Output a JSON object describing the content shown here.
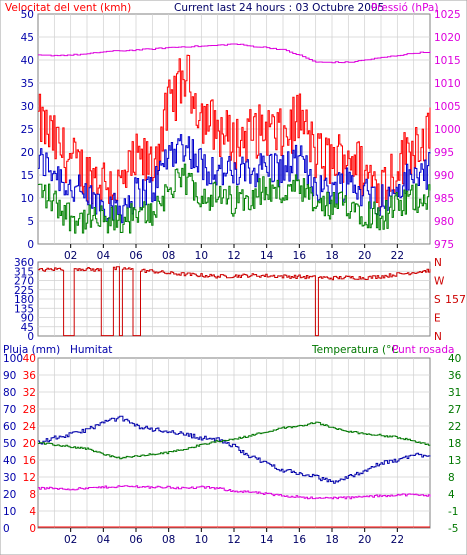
{
  "header": {
    "left_title": "Velocitat del vent (kmh)",
    "center_title": "Current last 24 hours : 03 Octubre 2005",
    "right_title": "Pressió (hPa)"
  },
  "mid_axis": {
    "right_letters": [
      "N",
      "W",
      "S",
      "E",
      "N"
    ],
    "current_direction": "157"
  },
  "bottom_header": {
    "rain_label": "Pluja (mm)",
    "humidity_label": "Humitat",
    "temp_label": "Temperatura (°C",
    "dew_label": "Punt rosada"
  },
  "colors": {
    "wind_gust": "#ff0000",
    "wind_avg": "#0000cc",
    "wind_min": "#008000",
    "pressure": "#dd00dd",
    "direction": "#cc0000",
    "humidity": "#0000aa",
    "temperature": "#007700",
    "dewpoint": "#dd00dd",
    "rain": "#ff0000",
    "frame": "#808080",
    "grid": "#d0d0d0"
  },
  "chart_data": [
    {
      "type": "line",
      "title": "Velocitat del vent (kmh) / Pressió (hPa)",
      "x_hours": [
        0,
        1,
        2,
        3,
        4,
        5,
        6,
        7,
        8,
        9,
        10,
        11,
        12,
        13,
        14,
        15,
        16,
        17,
        18,
        19,
        20,
        21,
        22,
        23,
        24
      ],
      "x_ticks": [
        "02",
        "04",
        "06",
        "08",
        "10",
        "12",
        "14",
        "16",
        "18",
        "20",
        "22"
      ],
      "y_left_ticks": [
        "0",
        "5",
        "10",
        "15",
        "20",
        "25",
        "30",
        "35",
        "40",
        "45",
        "50"
      ],
      "y_left_range": [
        0,
        50
      ],
      "y_right_ticks": [
        "975",
        "980",
        "985",
        "990",
        "995",
        "1000",
        "1005",
        "1010",
        "1015",
        "1020",
        "1025"
      ],
      "y_right_range": [
        975,
        1025
      ],
      "series": [
        {
          "key": "wind_gust",
          "values": [
            27,
            22,
            18,
            15,
            14,
            12,
            18,
            17,
            30,
            37,
            28,
            25,
            22,
            24,
            25,
            23,
            28,
            19,
            18,
            20,
            15,
            13,
            17,
            22,
            24
          ]
        },
        {
          "key": "wind_avg",
          "values": [
            18,
            16,
            12,
            10,
            9,
            8,
            11,
            12,
            20,
            22,
            17,
            16,
            15,
            16,
            17,
            16,
            18,
            13,
            12,
            14,
            11,
            10,
            12,
            15,
            16
          ]
        },
        {
          "key": "wind_min",
          "values": [
            12,
            9,
            6,
            5,
            5,
            5,
            6,
            7,
            12,
            14,
            11,
            10,
            9,
            11,
            12,
            11,
            12,
            8,
            8,
            9,
            7,
            6,
            8,
            10,
            11
          ]
        },
        {
          "key": "pressure",
          "values": [
            1016.0,
            1016.0,
            1016.1,
            1016.3,
            1016.8,
            1017.0,
            1017.2,
            1017.4,
            1017.7,
            1017.9,
            1018.0,
            1018.2,
            1018.5,
            1018.0,
            1017.7,
            1017.2,
            1016.0,
            1014.5,
            1014.5,
            1014.5,
            1015.0,
            1015.5,
            1016.0,
            1016.5,
            1016.8
          ]
        }
      ]
    },
    {
      "type": "line",
      "title": "Direcció del vent",
      "x_hours": [
        0,
        1,
        2,
        3,
        4,
        5,
        6,
        7,
        8,
        9,
        10,
        11,
        12,
        13,
        14,
        15,
        16,
        17,
        18,
        19,
        20,
        21,
        22,
        23,
        24
      ],
      "y_left_ticks": [
        "0",
        "45",
        "90",
        "135",
        "180",
        "225",
        "270",
        "315",
        "360"
      ],
      "y_range": [
        0,
        360
      ],
      "series": [
        {
          "key": "direction",
          "values": [
            320,
            325,
            330,
            325,
            320,
            330,
            320,
            315,
            305,
            300,
            295,
            290,
            292,
            295,
            293,
            290,
            288,
            285,
            282,
            285,
            283,
            290,
            300,
            310,
            320
          ]
        }
      ]
    },
    {
      "type": "line",
      "title": "Pluja / Humitat / Temperatura / Punt rosada",
      "x_hours": [
        0,
        1,
        2,
        3,
        4,
        5,
        6,
        7,
        8,
        9,
        10,
        11,
        12,
        13,
        14,
        15,
        16,
        17,
        18,
        19,
        20,
        21,
        22,
        23,
        24
      ],
      "y_rain_ticks": [
        "0",
        "4",
        "8",
        "12",
        "16",
        "20",
        "24",
        "28",
        "32",
        "36",
        "40"
      ],
      "y_rain_range": [
        0,
        40
      ],
      "y_hum_ticks": [
        "0",
        "10",
        "20",
        "30",
        "40",
        "50",
        "60",
        "70",
        "80",
        "90",
        "100"
      ],
      "y_hum_range": [
        0,
        100
      ],
      "y_temp_ticks": [
        "-5",
        "-1",
        "4",
        "8",
        "13",
        "18",
        "22",
        "27",
        "31",
        "36",
        "40"
      ],
      "y_temp_range": [
        -5,
        40
      ],
      "series": [
        {
          "key": "humidity",
          "values": [
            50,
            53,
            55,
            58,
            62,
            65,
            60,
            58,
            57,
            55,
            53,
            52,
            48,
            42,
            38,
            34,
            32,
            30,
            27,
            30,
            34,
            38,
            40,
            43,
            43
          ]
        },
        {
          "key": "temperature",
          "values": [
            17.5,
            17.0,
            16.5,
            16.0,
            14.5,
            13.5,
            14.0,
            14.5,
            15.0,
            16.0,
            17.0,
            18.0,
            18.5,
            19.5,
            20.5,
            21.5,
            22.0,
            23.0,
            21.5,
            20.5,
            20.0,
            19.5,
            19.0,
            18.0,
            17.0
          ]
        },
        {
          "key": "dewpoint",
          "values": [
            5.5,
            5.5,
            5.3,
            5.5,
            5.8,
            6.0,
            6.0,
            5.8,
            5.8,
            5.5,
            5.8,
            5.5,
            4.8,
            4.5,
            4.0,
            3.5,
            3.3,
            2.8,
            3.0,
            3.0,
            3.3,
            3.5,
            3.8,
            3.8,
            3.5
          ]
        },
        {
          "key": "rain",
          "values": [
            0,
            0,
            0,
            0,
            0,
            0,
            0,
            0,
            0,
            0,
            0,
            0,
            0,
            0,
            0,
            0,
            0,
            0,
            0,
            0,
            0,
            0,
            0,
            0,
            0
          ]
        }
      ]
    }
  ]
}
